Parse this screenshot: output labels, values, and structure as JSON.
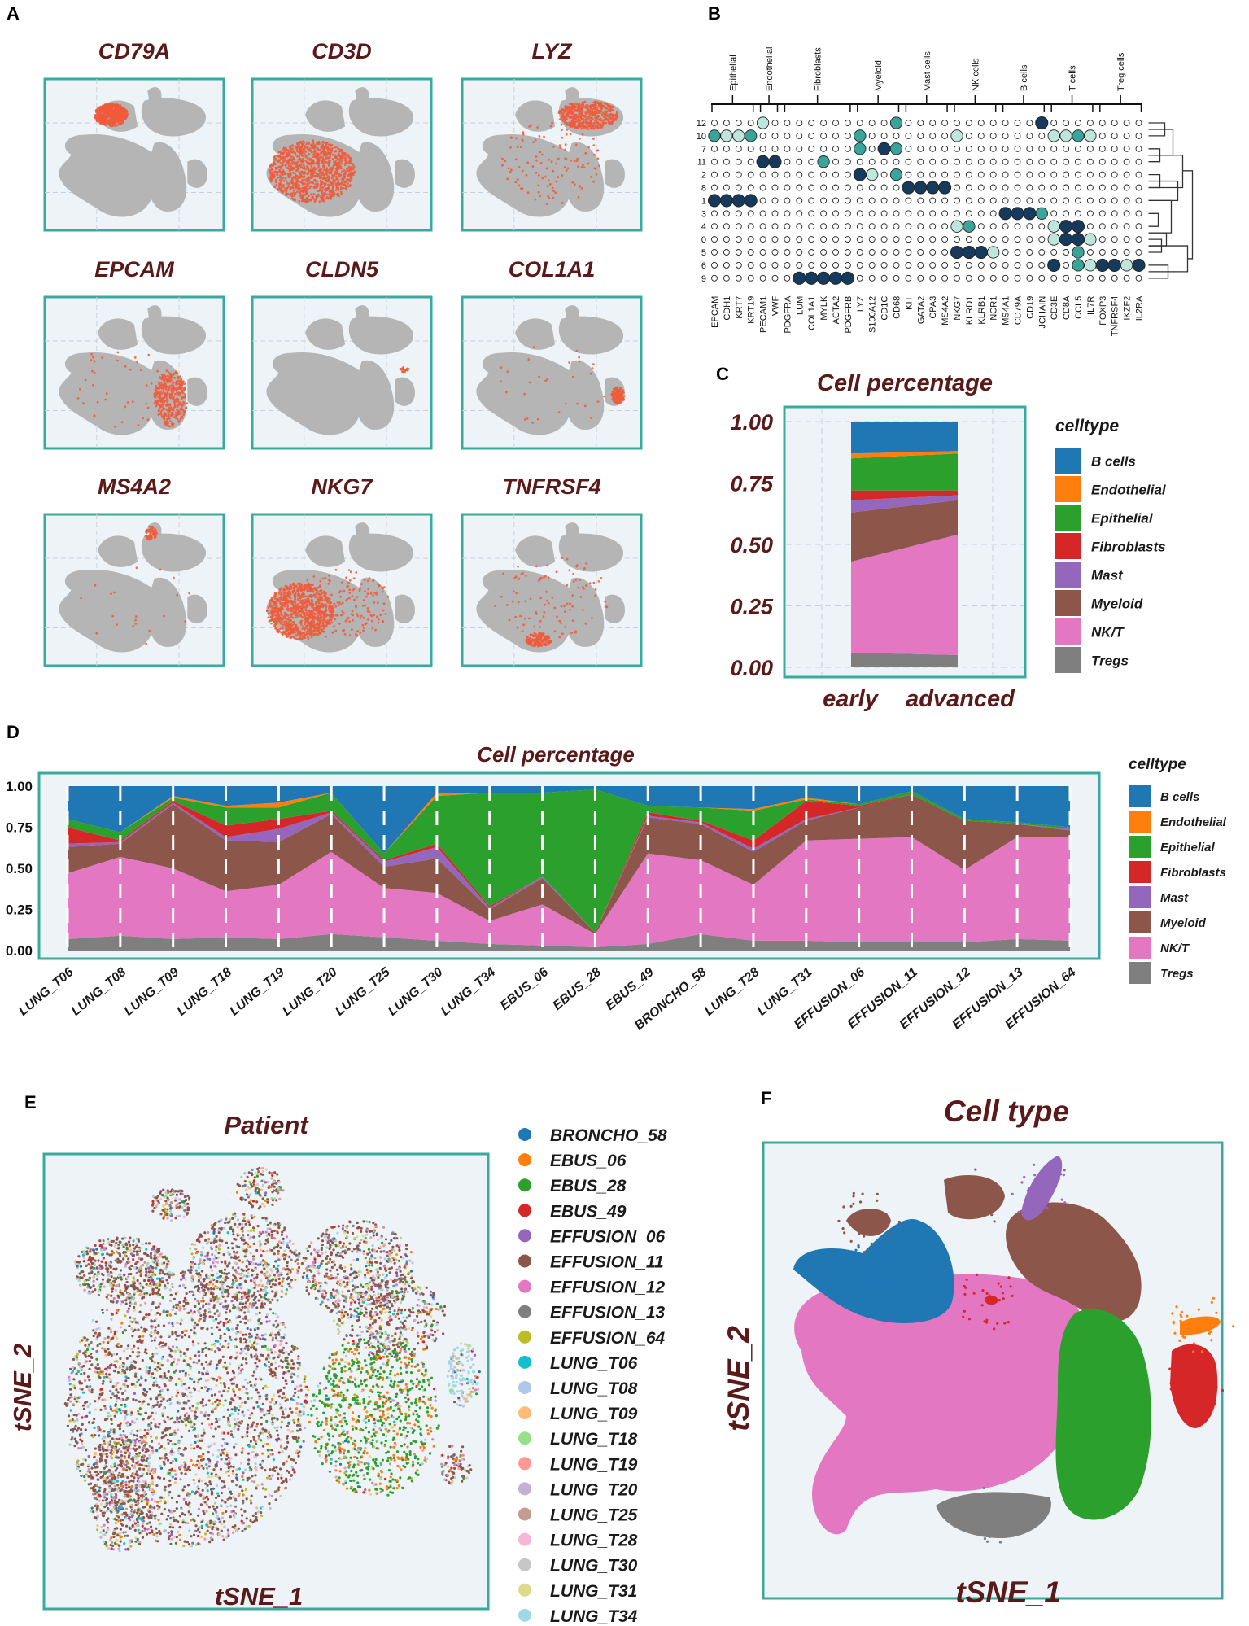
{
  "panels": {
    "a": "A",
    "b": "B",
    "c": "C",
    "d": "D",
    "e": "E",
    "f": "F"
  },
  "colors": {
    "frame": "#3aaa9c",
    "panel_bg": "#eef3f8",
    "title": "#5a1a1a",
    "celltypes": {
      "B cells": "#1f77b4",
      "Endothelial": "#ff7f0e",
      "Epithelial": "#2ca02c",
      "Fibroblasts": "#d62728",
      "Mast": "#9467bd",
      "Myeloid": "#8c564b",
      "NK/T": "#e377c2",
      "Tregs": "#7f7f7f"
    }
  },
  "panelA": {
    "genes": [
      "CD79A",
      "CD3D",
      "LYZ",
      "EPCAM",
      "CLDN5",
      "COL1A1",
      "MS4A2",
      "NKG7",
      "TNFRSF4"
    ]
  },
  "panelB": {
    "groups": [
      "Epithelial",
      "Endothelial",
      "Fibroblasts",
      "Myeloid",
      "Mast cells",
      "NK cells",
      "B cells",
      "T cells",
      "Treg cells"
    ],
    "genes": [
      "EPCAM",
      "CDH1",
      "KRT7",
      "KRT19",
      "PECAM1",
      "VWF",
      "PDGFRA",
      "LUM",
      "COL1A1",
      "MYLK",
      "ACTA2",
      "PDGFRB",
      "LYZ",
      "S100A12",
      "CD1C",
      "CD68",
      "KIT",
      "GATA2",
      "CPA3",
      "MS4A2",
      "NKG7",
      "KLRD1",
      "KLRB1",
      "NCR1",
      "MS4A1",
      "CD79A",
      "CD19",
      "JCHAIN",
      "CD3E",
      "CD8A",
      "CCL5",
      "IL7R",
      "FOXP3",
      "TNFRSF4",
      "IKZF2",
      "IL2RA"
    ],
    "clusters": [
      "12",
      "10",
      "7",
      "11",
      "2",
      "8",
      "1",
      "3",
      "4",
      "0",
      "5",
      "6",
      "9"
    ]
  },
  "chart_data": [
    {
      "type": "area",
      "title": "Cell percentage",
      "x": [
        "early",
        "advanced"
      ],
      "yticks": [
        "1.00",
        "0.75",
        "0.50",
        "0.25",
        "0.00"
      ],
      "ylim": [
        0,
        1
      ],
      "legend_title": "celltype",
      "series": [
        {
          "name": "Tregs",
          "values": [
            0.06,
            0.05
          ]
        },
        {
          "name": "NK/T",
          "values": [
            0.37,
            0.49
          ]
        },
        {
          "name": "Myeloid",
          "values": [
            0.2,
            0.14
          ]
        },
        {
          "name": "Mast",
          "values": [
            0.05,
            0.02
          ]
        },
        {
          "name": "Fibroblasts",
          "values": [
            0.04,
            0.02
          ]
        },
        {
          "name": "Epithelial",
          "values": [
            0.13,
            0.15
          ]
        },
        {
          "name": "Endothelial",
          "values": [
            0.02,
            0.01
          ]
        },
        {
          "name": "B cells",
          "values": [
            0.13,
            0.12
          ]
        }
      ]
    },
    {
      "type": "area",
      "title": "Cell percentage",
      "x": [
        "LUNG_T06",
        "LUNG_T08",
        "LUNG_T09",
        "LUNG_T18",
        "LUNG_T19",
        "LUNG_T20",
        "LUNG_T25",
        "LUNG_T30",
        "LUNG_T34",
        "EBUS_06",
        "EBUS_28",
        "EBUS_49",
        "BRONCHO_58",
        "LUNG_T28",
        "LUNG_T31",
        "EFFUSION_06",
        "EFFUSION_11",
        "EFFUSION_12",
        "EFFUSION_13",
        "EFFUSION_64"
      ],
      "yticks": [
        "1.00",
        "0.75",
        "0.50",
        "0.25",
        "0.00"
      ],
      "ylim": [
        0,
        1
      ],
      "legend_title": "celltype",
      "series": [
        {
          "name": "Tregs",
          "values": [
            0.07,
            0.09,
            0.07,
            0.08,
            0.07,
            0.1,
            0.08,
            0.06,
            0.04,
            0.03,
            0.02,
            0.04,
            0.1,
            0.06,
            0.06,
            0.05,
            0.05,
            0.05,
            0.07,
            0.06
          ]
        },
        {
          "name": "NK/T",
          "values": [
            0.4,
            0.48,
            0.43,
            0.28,
            0.33,
            0.5,
            0.3,
            0.29,
            0.14,
            0.25,
            0.08,
            0.55,
            0.45,
            0.34,
            0.61,
            0.63,
            0.64,
            0.44,
            0.62,
            0.63
          ]
        },
        {
          "name": "Myeloid",
          "values": [
            0.16,
            0.08,
            0.39,
            0.31,
            0.26,
            0.23,
            0.13,
            0.21,
            0.07,
            0.16,
            0.01,
            0.22,
            0.22,
            0.2,
            0.12,
            0.19,
            0.26,
            0.3,
            0.08,
            0.04
          ]
        },
        {
          "name": "Mast",
          "values": [
            0.02,
            0.01,
            0.01,
            0.02,
            0.08,
            0.01,
            0.03,
            0.07,
            0.01,
            0.01,
            0.0,
            0.01,
            0.01,
            0.02,
            0.01,
            0.0,
            0.0,
            0.0,
            0.0,
            0.01
          ]
        },
        {
          "name": "Fibroblasts",
          "values": [
            0.1,
            0.01,
            0.01,
            0.07,
            0.06,
            0.01,
            0.01,
            0.02,
            0.01,
            0.0,
            0.0,
            0.02,
            0.01,
            0.05,
            0.11,
            0.01,
            0.0,
            0.0,
            0.0,
            0.0
          ]
        },
        {
          "name": "Epithelial",
          "values": [
            0.05,
            0.05,
            0.02,
            0.11,
            0.07,
            0.11,
            0.04,
            0.29,
            0.69,
            0.51,
            0.87,
            0.04,
            0.08,
            0.18,
            0.01,
            0.01,
            0.02,
            0.01,
            0.01,
            0.01
          ]
        },
        {
          "name": "Endothelial",
          "values": [
            0.0,
            0.0,
            0.01,
            0.01,
            0.03,
            0.0,
            0.0,
            0.02,
            0.0,
            0.0,
            0.0,
            0.0,
            0.0,
            0.01,
            0.01,
            0.0,
            0.0,
            0.0,
            0.0,
            0.0
          ]
        },
        {
          "name": "B cells",
          "values": [
            0.2,
            0.28,
            0.06,
            0.12,
            0.1,
            0.04,
            0.41,
            0.04,
            0.04,
            0.04,
            0.02,
            0.12,
            0.13,
            0.14,
            0.07,
            0.11,
            0.03,
            0.2,
            0.22,
            0.25
          ]
        }
      ]
    }
  ],
  "panelE": {
    "title": "Patient",
    "xlabel": "tSNE_1",
    "ylabel": "tSNE_2",
    "legend": [
      {
        "name": "BRONCHO_58",
        "color": "#1f77b4"
      },
      {
        "name": "EBUS_06",
        "color": "#ff7f0e"
      },
      {
        "name": "EBUS_28",
        "color": "#2ca02c"
      },
      {
        "name": "EBUS_49",
        "color": "#d62728"
      },
      {
        "name": "EFFUSION_06",
        "color": "#9467bd"
      },
      {
        "name": "EFFUSION_11",
        "color": "#8c564b"
      },
      {
        "name": "EFFUSION_12",
        "color": "#e377c2"
      },
      {
        "name": "EFFUSION_13",
        "color": "#7f7f7f"
      },
      {
        "name": "EFFUSION_64",
        "color": "#bcbd22"
      },
      {
        "name": "LUNG_T06",
        "color": "#17becf"
      },
      {
        "name": "LUNG_T08",
        "color": "#aec7e8"
      },
      {
        "name": "LUNG_T09",
        "color": "#ffbb78"
      },
      {
        "name": "LUNG_T18",
        "color": "#98df8a"
      },
      {
        "name": "LUNG_T19",
        "color": "#ff9896"
      },
      {
        "name": "LUNG_T20",
        "color": "#c5b0d5"
      },
      {
        "name": "LUNG_T25",
        "color": "#c49c94"
      },
      {
        "name": "LUNG_T28",
        "color": "#f7b6d2"
      },
      {
        "name": "LUNG_T30",
        "color": "#c7c7c7"
      },
      {
        "name": "LUNG_T31",
        "color": "#dbdb8d"
      },
      {
        "name": "LUNG_T34",
        "color": "#9edae5"
      }
    ]
  },
  "panelF": {
    "title": "Cell type",
    "xlabel": "tSNE_1",
    "ylabel": "tSNE_2"
  }
}
